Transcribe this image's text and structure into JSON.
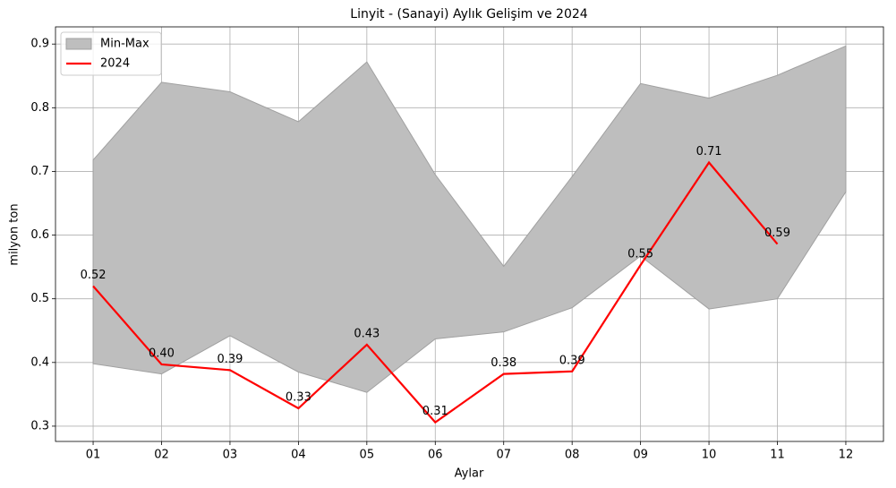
{
  "chart_data": {
    "type": "band-line",
    "title": "Linyit - (Sanayi) Aylık Gelişim ve 2024",
    "x_label": "Aylar",
    "y_label": "milyon ton",
    "categories": [
      "01",
      "02",
      "03",
      "04",
      "05",
      "06",
      "07",
      "08",
      "09",
      "10",
      "11",
      "12"
    ],
    "series": [
      {
        "name": "Min-Max",
        "type": "area",
        "color": "#bebebe",
        "lower": [
          0.398,
          0.382,
          0.442,
          0.385,
          0.353,
          0.437,
          0.448,
          0.486,
          0.567,
          0.484,
          0.5,
          0.668
        ],
        "upper": [
          0.718,
          0.84,
          0.825,
          0.778,
          0.872,
          0.695,
          0.551,
          0.692,
          0.838,
          0.815,
          0.851,
          0.897
        ]
      },
      {
        "name": "2024",
        "type": "line",
        "color": "#ff0000",
        "values": [
          0.52,
          0.397,
          0.388,
          0.328,
          0.428,
          0.306,
          0.382,
          0.386,
          0.553,
          0.714,
          0.586,
          null
        ],
        "value_labels": [
          "0.52",
          "0.40",
          "0.39",
          "0.33",
          "0.43",
          "0.31",
          "0.38",
          "0.39",
          "0.55",
          "0.71",
          "0.59",
          null
        ]
      }
    ],
    "ylim": [
      0.276,
      0.927
    ],
    "yticks": [
      {
        "value": 0.3,
        "label": "0.3"
      },
      {
        "value": 0.4,
        "label": "0.4"
      },
      {
        "value": 0.5,
        "label": "0.5"
      },
      {
        "value": 0.6,
        "label": "0.6"
      },
      {
        "value": 0.7,
        "label": "0.7"
      },
      {
        "value": 0.8,
        "label": "0.8"
      },
      {
        "value": 0.9,
        "label": "0.9"
      }
    ],
    "grid": true,
    "legend": "upper left"
  }
}
